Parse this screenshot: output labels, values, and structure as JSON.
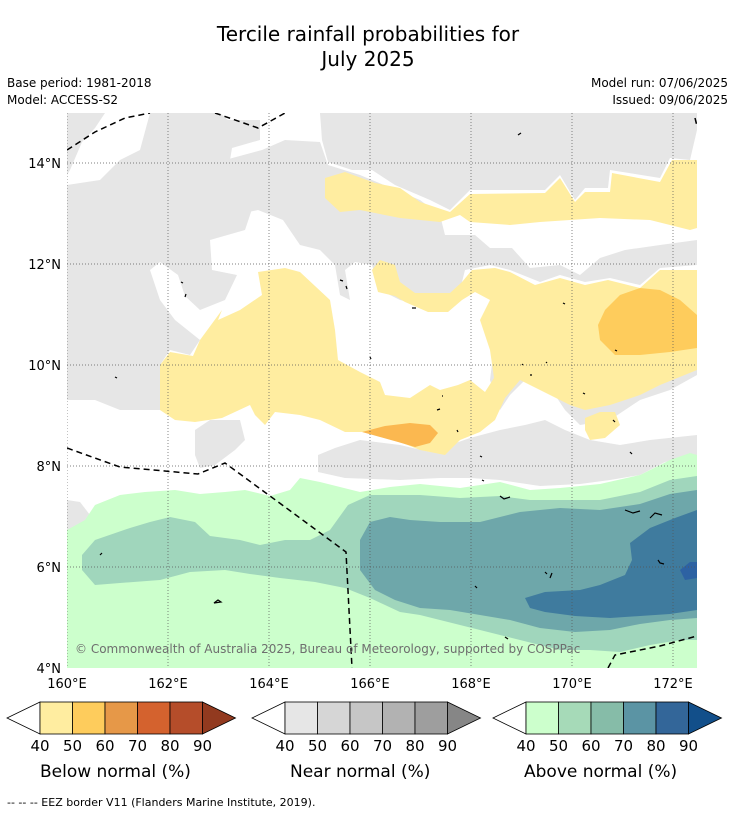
{
  "title_line1": "Tercile rainfall probabilities for",
  "title_line2": "July 2025",
  "meta": {
    "base_period": "Base period: 1981-2018",
    "model": "Model: ACCESS-S2",
    "model_run": "Model run: 07/06/2025",
    "issued": "Issued: 09/06/2025"
  },
  "map": {
    "lon_range": [
      160.0,
      172.5
    ],
    "lat_range": [
      4.0,
      15.0
    ],
    "x_ticks": [
      "160°E",
      "162°E",
      "164°E",
      "166°E",
      "168°E",
      "170°E",
      "172°E"
    ],
    "y_ticks": [
      "4°N",
      "6°N",
      "8°N",
      "10°N",
      "12°N",
      "14°N"
    ],
    "x_tick_values": [
      160,
      162,
      164,
      166,
      168,
      170,
      172
    ],
    "y_tick_values": [
      4,
      6,
      8,
      10,
      12,
      14
    ],
    "grid": "dotted",
    "copyright": "© Commonwealth of Australia 2025, Bureau of Meteorology, supported by COSPPac"
  },
  "legends": [
    {
      "label": "Below normal (%)",
      "ticks": [
        "40",
        "50",
        "60",
        "70",
        "80",
        "90"
      ],
      "colors": [
        "#ffeda0",
        "#fecc5c",
        "#e69848",
        "#d4622e",
        "#b54d2a",
        "#923a1f"
      ]
    },
    {
      "label": "Near normal (%)",
      "ticks": [
        "40",
        "50",
        "60",
        "70",
        "80",
        "90"
      ],
      "colors": [
        "#e6e6e6",
        "#d6d6d6",
        "#c6c6c6",
        "#b2b2b2",
        "#9e9e9e",
        "#868686"
      ]
    },
    {
      "label": "Above normal (%)",
      "ticks": [
        "40",
        "50",
        "60",
        "70",
        "80",
        "90"
      ],
      "colors": [
        "#ccffcc",
        "#a6dab8",
        "#86bca8",
        "#5b94a4",
        "#336699",
        "#124f8a"
      ]
    }
  ],
  "colors": {
    "near_normal_40": "#e6e6e6",
    "below_normal_40": "#ffeda0",
    "below_normal_50": "#fecc5c",
    "below_normal_60": "#f8b040",
    "above_normal_40": "#ccffcc",
    "above_normal_50": "#a0d6bc",
    "above_normal_60": "#6ea7aa",
    "above_normal_70": "#3f7b9e",
    "above_normal_80": "#2a6aa5"
  },
  "footnote": "--  --  -- EEZ border V11 (Flanders Marine Institute, 2019)."
}
